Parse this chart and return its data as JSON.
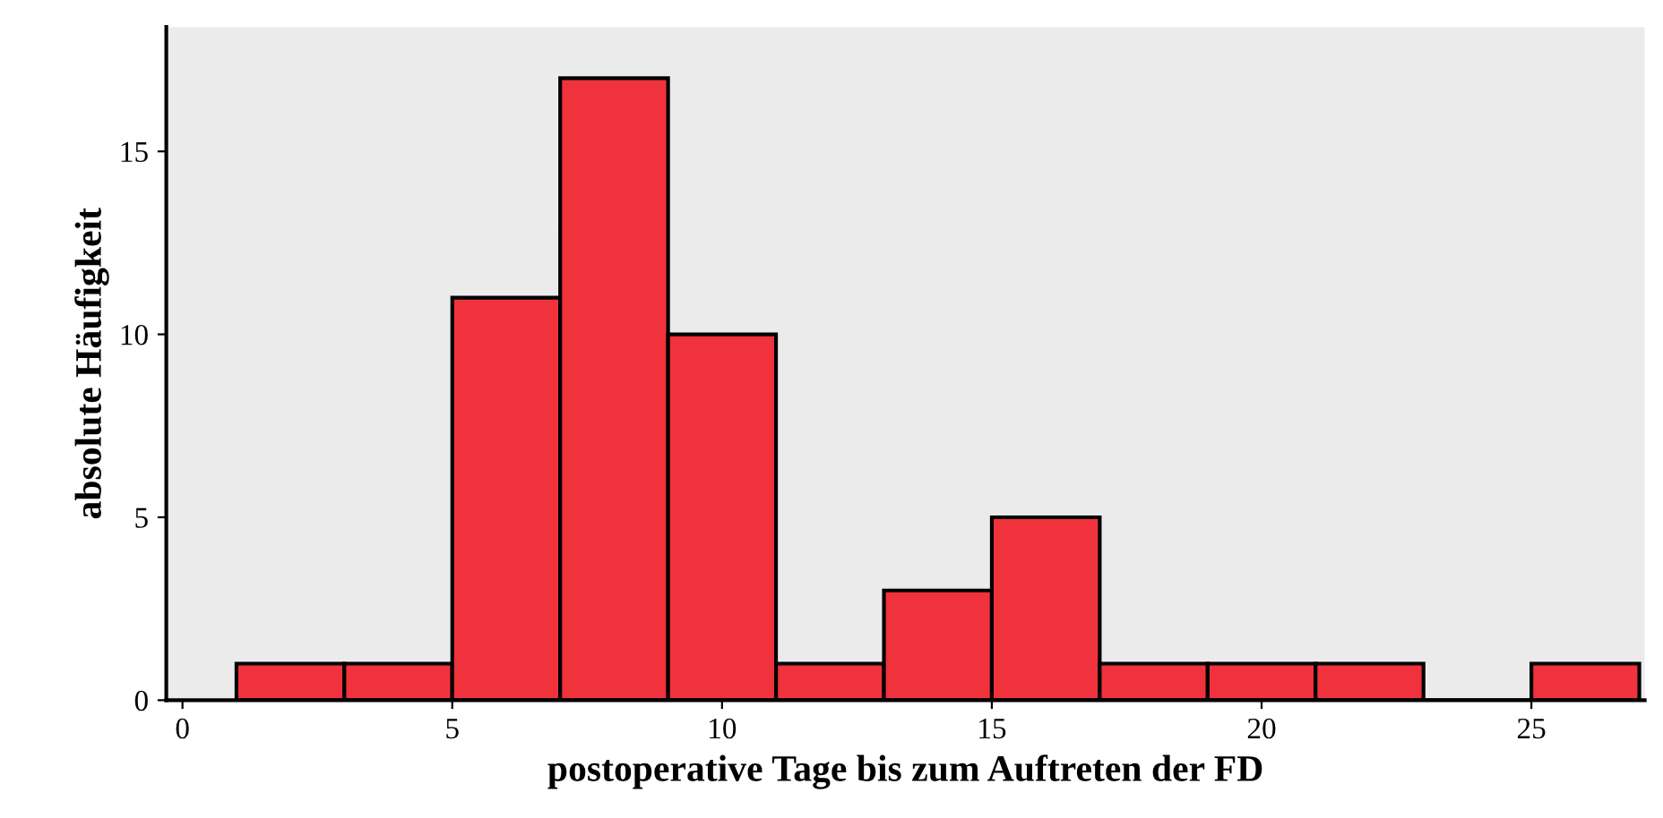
{
  "chart_data": {
    "type": "histogram",
    "xlabel": "postoperative Tage bis zum Auftreten der FD",
    "ylabel": "absolute Häufigkeit",
    "bins": [
      1,
      3,
      5,
      7,
      9,
      11,
      13,
      15,
      17,
      19,
      21,
      23,
      25,
      27
    ],
    "values": [
      1,
      1,
      11,
      17,
      10,
      1,
      3,
      5,
      1,
      1,
      1,
      0,
      1
    ],
    "color": "#f0323c",
    "xlim": [
      -0.3,
      27.1
    ],
    "ylim": [
      0,
      18.4
    ],
    "xticks": [
      0,
      5,
      10,
      15,
      20,
      25
    ],
    "yticks": [
      0,
      5,
      10,
      15
    ],
    "grid": false,
    "legend": false
  }
}
